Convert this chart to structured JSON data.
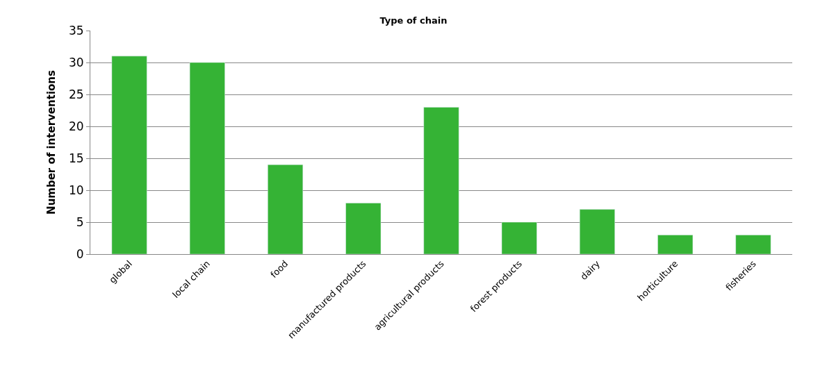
{
  "chart_data": {
    "type": "bar",
    "title": "Type of chain",
    "ylabel": "Number of interventions",
    "categories": [
      "global",
      "local chain",
      "food",
      "manufactured products",
      "agricultural products",
      "forest products",
      "dairy",
      "horticulture",
      "fisheries"
    ],
    "values": [
      31,
      30,
      14,
      8,
      23,
      5,
      7,
      3,
      3
    ],
    "color": "#35b335",
    "ylim": [
      0,
      35
    ],
    "yticks": [
      0,
      5,
      10,
      15,
      20,
      25,
      30,
      35
    ],
    "grid": "y"
  }
}
